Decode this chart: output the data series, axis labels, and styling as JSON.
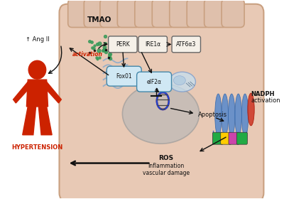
{
  "bg_color": "#ffffff",
  "cell_fill": "#e8c9b5",
  "cell_edge": "#c9a080",
  "finger_fill": "#dfc0ac",
  "finger_edge": "#c9a080",
  "nucleus_fill": "#b8b8b8",
  "nucleus_edge": "#999999",
  "er_color": "#88aacc",
  "dna_red": "#cc2200",
  "dna_blue": "#2244cc",
  "box_fill": "#f5f0e8",
  "box_edge": "#666666",
  "rounded_fill": "#d0e8f4",
  "rounded_edge": "#4488aa",
  "nuc_small_fill": "#c5dff0",
  "nuc_small_edge": "#7799cc",
  "tmao_green": "#3a9a5a",
  "red": "#cc2200",
  "arrow_color": "#111111",
  "human_color": "#cc2200",
  "nadph_blue": "#5588cc",
  "nadph_red": "#cc3322",
  "box_labels": [
    "PERK",
    "IRE1α",
    "ATF6α3"
  ],
  "rounded_labels": [
    "Fox01",
    "eIF2α"
  ],
  "domain_colors": [
    "#22aa44",
    "#ffcc00",
    "#cc44aa",
    "#22aa44"
  ]
}
